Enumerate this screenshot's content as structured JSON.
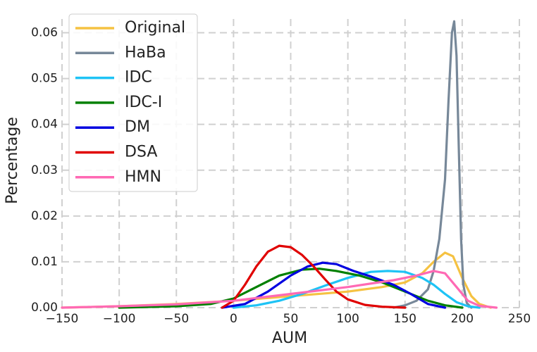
{
  "chart_data": {
    "type": "line",
    "xlabel": "AUM",
    "ylabel": "Percentage",
    "xlim": [
      -150,
      250
    ],
    "ylim": [
      0,
      0.063
    ],
    "xticks": [
      {
        "value": -150,
        "label": "−150"
      },
      {
        "value": -100,
        "label": "−100"
      },
      {
        "value": -50,
        "label": "−50"
      },
      0,
      50,
      100,
      150,
      200,
      250
    ],
    "yticks": [
      {
        "value": 0,
        "label": "0.00"
      },
      {
        "value": 0.01,
        "label": "0.01"
      },
      {
        "value": 0.02,
        "label": "0.02"
      },
      {
        "value": 0.03,
        "label": "0.03"
      },
      {
        "value": 0.04,
        "label": "0.04"
      },
      {
        "value": 0.05,
        "label": "0.05"
      },
      {
        "value": 0.06,
        "label": "0.06"
      }
    ],
    "grid": true,
    "legend": "upper left",
    "series": [
      {
        "name": "Original",
        "color": "#f5c242",
        "x": [
          -150,
          -100,
          -50,
          0,
          50,
          100,
          130,
          150,
          165,
          175,
          185,
          192,
          200,
          208,
          215,
          225
        ],
        "values": [
          0,
          0.0003,
          0.0008,
          0.0015,
          0.0025,
          0.0035,
          0.0045,
          0.0055,
          0.0075,
          0.01,
          0.012,
          0.0112,
          0.0065,
          0.0025,
          0.0008,
          0
        ]
      },
      {
        "name": "HaBa",
        "color": "#778899",
        "x": [
          140,
          150,
          160,
          170,
          175,
          180,
          185,
          188,
          191,
          193,
          195,
          197,
          199,
          201,
          204,
          208
        ],
        "values": [
          0,
          0.0005,
          0.0015,
          0.004,
          0.008,
          0.015,
          0.028,
          0.045,
          0.06,
          0.0625,
          0.055,
          0.035,
          0.015,
          0.005,
          0.001,
          0
        ]
      },
      {
        "name": "IDC",
        "color": "#1ec3f5",
        "x": [
          0,
          20,
          40,
          60,
          80,
          100,
          120,
          135,
          150,
          165,
          175,
          185,
          195,
          205,
          215
        ],
        "values": [
          0,
          0.0005,
          0.0015,
          0.003,
          0.0048,
          0.0065,
          0.0078,
          0.008,
          0.0078,
          0.0065,
          0.005,
          0.003,
          0.0012,
          0.0003,
          0
        ]
      },
      {
        "name": "IDC-I",
        "color": "#008000",
        "x": [
          -100,
          -50,
          -20,
          0,
          20,
          40,
          60,
          75,
          90,
          110,
          130,
          150,
          170,
          185,
          200
        ],
        "values": [
          0,
          0.0003,
          0.0008,
          0.002,
          0.0045,
          0.007,
          0.0083,
          0.0085,
          0.008,
          0.007,
          0.0055,
          0.0035,
          0.0015,
          0.0005,
          0
        ]
      },
      {
        "name": "DM",
        "color": "#0000e0",
        "x": [
          -10,
          10,
          30,
          50,
          65,
          78,
          90,
          105,
          120,
          140,
          155,
          170,
          185
        ],
        "values": [
          0,
          0.0008,
          0.0035,
          0.007,
          0.009,
          0.0098,
          0.0095,
          0.008,
          0.0068,
          0.005,
          0.003,
          0.0008,
          0
        ]
      },
      {
        "name": "DSA",
        "color": "#e00000",
        "x": [
          -10,
          0,
          10,
          20,
          30,
          40,
          50,
          60,
          70,
          80,
          90,
          100,
          115,
          130,
          150
        ],
        "values": [
          0,
          0.0015,
          0.005,
          0.009,
          0.0122,
          0.0135,
          0.0132,
          0.0115,
          0.009,
          0.0062,
          0.0035,
          0.0018,
          0.0006,
          0.0002,
          0
        ]
      },
      {
        "name": "HMN",
        "color": "#ff69b4",
        "x": [
          -150,
          -100,
          -50,
          0,
          50,
          100,
          140,
          160,
          175,
          185,
          195,
          205,
          215,
          230
        ],
        "values": [
          0,
          0.0003,
          0.0007,
          0.0015,
          0.003,
          0.0045,
          0.006,
          0.007,
          0.008,
          0.0075,
          0.0045,
          0.0015,
          0.0004,
          0
        ]
      }
    ]
  }
}
